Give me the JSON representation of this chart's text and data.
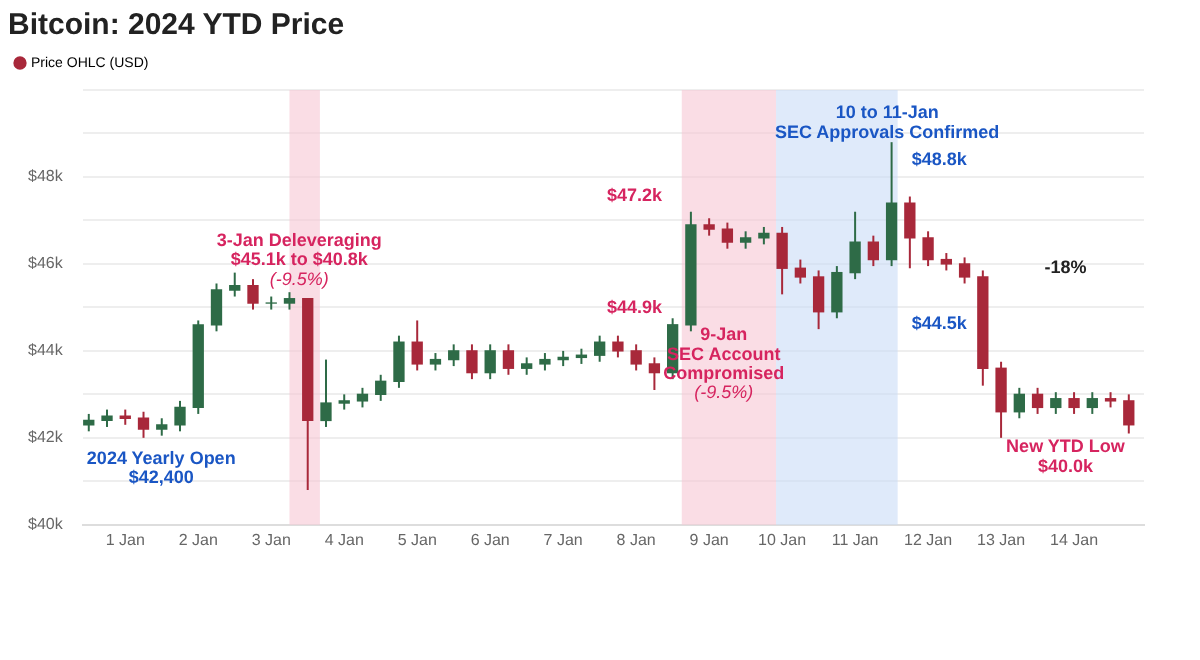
{
  "chart_data": {
    "type": "candlestick",
    "title": "Bitcoin: 2024 YTD Price",
    "x": [
      "2023-12-31T12:00",
      "2023-12-31T18:00",
      "2024-01-01T00:00",
      "2024-01-01T06:00",
      "2024-01-01T12:00",
      "2024-01-01T18:00",
      "2024-01-02T00:00",
      "2024-01-02T06:00",
      "2024-01-02T12:00",
      "2024-01-02T18:00",
      "2024-01-03T00:00",
      "2024-01-03T06:00",
      "2024-01-03T12:00",
      "2024-01-03T18:00",
      "2024-01-04T00:00",
      "2024-01-04T06:00",
      "2024-01-04T12:00",
      "2024-01-04T18:00",
      "2024-01-05T00:00",
      "2024-01-05T06:00",
      "2024-01-05T12:00",
      "2024-01-05T18:00",
      "2024-01-06T00:00",
      "2024-01-06T06:00",
      "2024-01-06T12:00",
      "2024-01-06T18:00",
      "2024-01-07T00:00",
      "2024-01-07T06:00",
      "2024-01-07T12:00",
      "2024-01-07T18:00",
      "2024-01-08T00:00",
      "2024-01-08T06:00",
      "2024-01-08T12:00",
      "2024-01-08T18:00",
      "2024-01-09T00:00",
      "2024-01-09T06:00",
      "2024-01-09T12:00",
      "2024-01-09T18:00",
      "2024-01-10T00:00",
      "2024-01-10T06:00",
      "2024-01-10T12:00",
      "2024-01-10T18:00",
      "2024-01-11T00:00",
      "2024-01-11T06:00",
      "2024-01-11T12:00",
      "2024-01-11T18:00",
      "2024-01-12T00:00",
      "2024-01-12T06:00",
      "2024-01-12T12:00",
      "2024-01-12T18:00",
      "2024-01-13T00:00",
      "2024-01-13T06:00",
      "2024-01-13T12:00",
      "2024-01-13T18:00",
      "2024-01-14T00:00",
      "2024-01-14T06:00",
      "2024-01-14T12:00",
      "2024-01-14T18:00"
    ],
    "series": [
      {
        "name": "Price OHLC (USD)",
        "colors": [
          "#2e6b47",
          "#2e6b47",
          "#a8283a",
          "#a8283a",
          "#2e6b47",
          "#2e6b47",
          "#2e6b47",
          "#2e6b47",
          "#2e6b47",
          "#a8283a",
          "#2e6b47",
          "#2e6b47",
          "#a8283a",
          "#2e6b47",
          "#2e6b47",
          "#2e6b47",
          "#2e6b47",
          "#2e6b47",
          "#a8283a",
          "#2e6b47",
          "#2e6b47",
          "#a8283a",
          "#2e6b47",
          "#a8283a",
          "#2e6b47",
          "#2e6b47",
          "#2e6b47",
          "#2e6b47",
          "#2e6b47",
          "#a8283a",
          "#a8283a",
          "#a8283a",
          "#2e6b47",
          "#2e6b47",
          "#a8283a",
          "#a8283a",
          "#2e6b47",
          "#2e6b47",
          "#a8283a",
          "#a8283a",
          "#a8283a",
          "#2e6b47",
          "#2e6b47",
          "#a8283a",
          "#2e6b47",
          "#a8283a",
          "#a8283a",
          "#a8283a",
          "#a8283a",
          "#a8283a",
          "#a8283a",
          "#2e6b47",
          "#a8283a",
          "#2e6b47",
          "#a8283a",
          "#2e6b47",
          "#a8283a",
          "#a8283a"
        ],
        "ohlc": [
          [
            42300,
            42550,
            42150,
            42400
          ],
          [
            42400,
            42650,
            42250,
            42500
          ],
          [
            42500,
            42650,
            42300,
            42450
          ],
          [
            42450,
            42600,
            42000,
            42200
          ],
          [
            42200,
            42450,
            42050,
            42300
          ],
          [
            42300,
            42850,
            42150,
            42700
          ],
          [
            42700,
            44700,
            42550,
            44600
          ],
          [
            44600,
            45550,
            44450,
            45400
          ],
          [
            45400,
            45800,
            45250,
            45500
          ],
          [
            45500,
            45650,
            44950,
            45100
          ],
          [
            45100,
            45250,
            44950,
            45100
          ],
          [
            45100,
            45350,
            44950,
            45200
          ],
          [
            45200,
            45200,
            40800,
            42400
          ],
          [
            42400,
            43800,
            42250,
            42800
          ],
          [
            42800,
            43000,
            42650,
            42850
          ],
          [
            42850,
            43150,
            42700,
            43000
          ],
          [
            43000,
            43450,
            42850,
            43300
          ],
          [
            43300,
            44350,
            43150,
            44200
          ],
          [
            44200,
            44700,
            43550,
            43700
          ],
          [
            43700,
            43950,
            43550,
            43800
          ],
          [
            43800,
            44150,
            43650,
            44000
          ],
          [
            44000,
            44150,
            43350,
            43500
          ],
          [
            43500,
            44150,
            43350,
            44000
          ],
          [
            44000,
            44150,
            43450,
            43600
          ],
          [
            43600,
            43850,
            43450,
            43700
          ],
          [
            43700,
            43950,
            43550,
            43800
          ],
          [
            43800,
            44000,
            43650,
            43850
          ],
          [
            43850,
            44050,
            43700,
            43900
          ],
          [
            43900,
            44350,
            43750,
            44200
          ],
          [
            44200,
            44350,
            43850,
            44000
          ],
          [
            44000,
            44150,
            43550,
            43700
          ],
          [
            43700,
            43850,
            43100,
            43500
          ],
          [
            43500,
            44750,
            43350,
            44600
          ],
          [
            44600,
            47200,
            44450,
            46900
          ],
          [
            46900,
            47050,
            46650,
            46800
          ],
          [
            46800,
            46950,
            46350,
            46500
          ],
          [
            46500,
            46750,
            46350,
            46600
          ],
          [
            46600,
            46850,
            46450,
            46700
          ],
          [
            46700,
            46850,
            45300,
            45900
          ],
          [
            45900,
            46100,
            45550,
            45700
          ],
          [
            45700,
            45850,
            44500,
            44900
          ],
          [
            44900,
            45950,
            44750,
            45800
          ],
          [
            45800,
            47200,
            45650,
            46500
          ],
          [
            46500,
            46650,
            45950,
            46100
          ],
          [
            46100,
            48800,
            45950,
            47400
          ],
          [
            47400,
            47550,
            45900,
            46600
          ],
          [
            46600,
            46750,
            45950,
            46100
          ],
          [
            46100,
            46250,
            45850,
            46000
          ],
          [
            46000,
            46150,
            45550,
            45700
          ],
          [
            45700,
            45850,
            43200,
            43600
          ],
          [
            43600,
            43750,
            42000,
            42600
          ],
          [
            42600,
            43150,
            42450,
            43000
          ],
          [
            43000,
            43150,
            42550,
            42700
          ],
          [
            42700,
            43050,
            42550,
            42900
          ],
          [
            42900,
            43050,
            42550,
            42700
          ],
          [
            42700,
            43050,
            42550,
            42900
          ],
          [
            42900,
            43050,
            42700,
            42850
          ],
          [
            42850,
            43000,
            42100,
            42300
          ]
        ]
      }
    ],
    "xlim": [
      "2023-12-31T10:00",
      "2024-01-14T23:00"
    ],
    "xticks": [
      {
        "value": "2024-01-01",
        "label": "1 Jan"
      },
      {
        "value": "2024-01-02",
        "label": "2 Jan"
      },
      {
        "value": "2024-01-03",
        "label": "3 Jan"
      },
      {
        "value": "2024-01-04",
        "label": "4 Jan"
      },
      {
        "value": "2024-01-05",
        "label": "5 Jan"
      },
      {
        "value": "2024-01-06",
        "label": "6 Jan"
      },
      {
        "value": "2024-01-07",
        "label": "7 Jan"
      },
      {
        "value": "2024-01-08",
        "label": "8 Jan"
      },
      {
        "value": "2024-01-09",
        "label": "9 Jan"
      },
      {
        "value": "2024-01-10",
        "label": "10 Jan"
      },
      {
        "value": "2024-01-11",
        "label": "11 Jan"
      },
      {
        "value": "2024-01-12",
        "label": "12 Jan"
      },
      {
        "value": "2024-01-13",
        "label": "13 Jan"
      },
      {
        "value": "2024-01-14",
        "label": "14 Jan"
      }
    ],
    "ylim": [
      40000,
      50000
    ],
    "yticks": [
      {
        "value": 40000,
        "label": "$40k"
      },
      {
        "value": 41000,
        "label": null
      },
      {
        "value": 42000,
        "label": "$42k"
      },
      {
        "value": 43000,
        "label": null
      },
      {
        "value": 44000,
        "label": "$44k"
      },
      {
        "value": 45000,
        "label": null
      },
      {
        "value": 46000,
        "label": "$46k"
      },
      {
        "value": 47000,
        "label": null
      },
      {
        "value": 48000,
        "label": "$48k"
      },
      {
        "value": 49000,
        "label": null
      },
      {
        "value": 50000,
        "label": null
      }
    ],
    "grid": "y",
    "legend": "top left",
    "bands": [
      {
        "axis": "x",
        "from": "2024-01-03T06:00",
        "to": "2024-01-03T16:00",
        "color": "#f7c6d3"
      },
      {
        "axis": "x",
        "from": "2024-01-08T15:00",
        "to": "2024-01-09T22:00",
        "color": "#f7c6d3"
      },
      {
        "axis": "x",
        "from": "2024-01-09T22:00",
        "to": "2024-01-11T14:00",
        "color": "#c9dcf7"
      }
    ],
    "annotations": [
      "3-Jan Deleveraging",
      "$45.1k to $40.8k",
      "(-9.5%)",
      "2024 Yearly Open",
      "$42,400",
      "$47.2k",
      "$44.9k",
      "9-Jan",
      "SEC Account",
      "Compromised",
      "(-9.5%)",
      "10 to 11-Jan",
      "SEC Approvals Confirmed",
      "$48.8k",
      "$44.5k",
      "-18%",
      "New YTD Low",
      "$40.0k"
    ]
  }
}
